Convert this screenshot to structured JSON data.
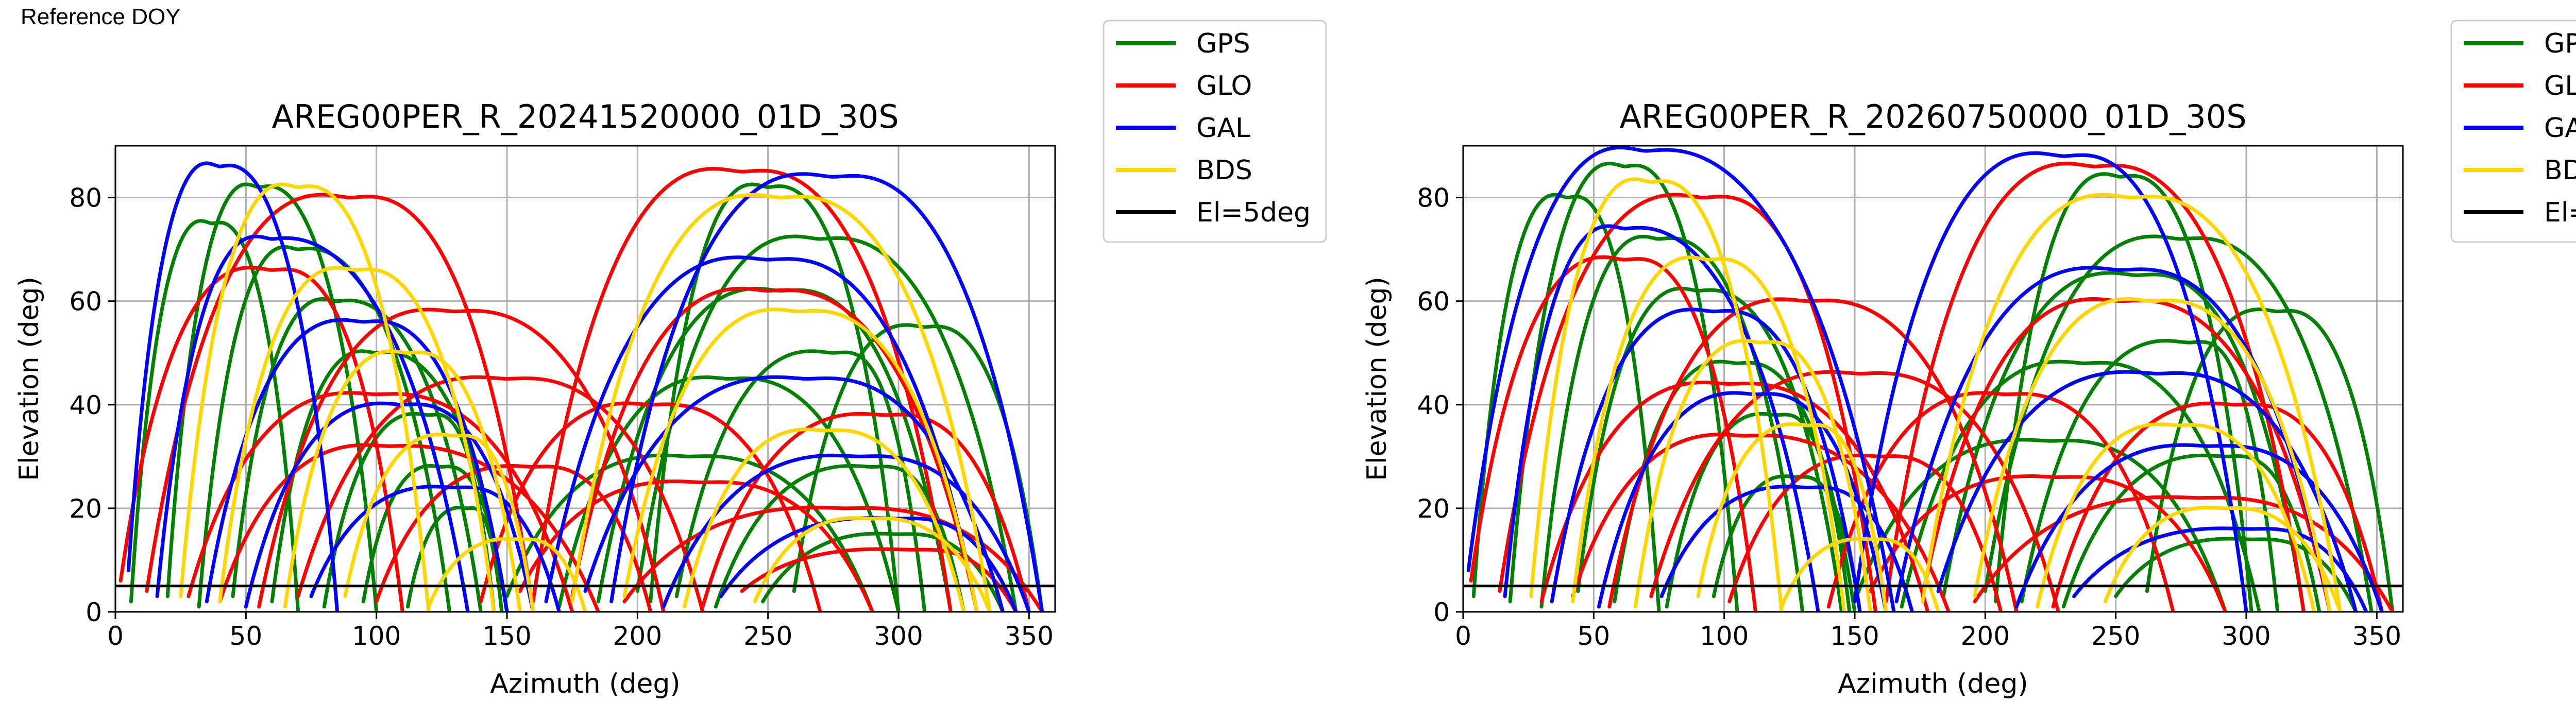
{
  "page_label": "Reference DOY",
  "chart_data": [
    {
      "type": "scatter",
      "title": "AREG00PER_R_20241520000_01D_30S",
      "xlabel": "Azimuth (deg)",
      "ylabel": "Elevation (deg)",
      "xlim": [
        0,
        360
      ],
      "ylim": [
        0,
        90
      ],
      "xticks": [
        0,
        50,
        100,
        150,
        200,
        250,
        300,
        350
      ],
      "yticks": [
        0,
        20,
        40,
        60,
        80
      ],
      "grid": true,
      "legend_position": "outside-right",
      "elevation_mask": 5,
      "series": [
        {
          "name": "GPS",
          "color": "#008000",
          "arcs": [
            [
              6,
              2,
              37,
              75,
              70
            ],
            [
              20,
              3,
              55,
              82,
              100
            ],
            [
              32,
              1,
              70,
              70,
              128
            ],
            [
              45,
              3,
              85,
              60,
              140
            ],
            [
              60,
              2,
              100,
              50,
              150
            ],
            [
              80,
              1,
              120,
              38,
              145
            ],
            [
              95,
              2,
              125,
              28,
              150
            ],
            [
              112,
              1,
              135,
              20,
              148
            ],
            [
              150,
              3,
              220,
              30,
              290
            ],
            [
              170,
              1,
              235,
              45,
              300
            ],
            [
              185,
              2,
              255,
              62,
              320
            ],
            [
              200,
              4,
              270,
              72,
              345
            ],
            [
              215,
              3,
              275,
              50,
              310
            ],
            [
              230,
              1,
              290,
              28,
              325
            ],
            [
              248,
              2,
              300,
              15,
              340
            ],
            [
              260,
              4,
              310,
              55,
              355
            ],
            [
              205,
              2,
              250,
              82,
              300
            ]
          ]
        },
        {
          "name": "GLO",
          "color": "#ff0000",
          "arcs": [
            [
              2,
              6,
              60,
              66,
              110
            ],
            [
              12,
              4,
              90,
              80,
              160
            ],
            [
              28,
              3,
              100,
              42,
              175
            ],
            [
              40,
              2,
              105,
              32,
              185
            ],
            [
              55,
              1,
              130,
              58,
              210
            ],
            [
              70,
              3,
              150,
              45,
              225
            ],
            [
              140,
              2,
              205,
              40,
              270
            ],
            [
              155,
              4,
              225,
              25,
              290
            ],
            [
              160,
              2,
              240,
              85,
              320
            ],
            [
              175,
              3,
              250,
              62,
              330
            ],
            [
              195,
              2,
              280,
              20,
              355
            ],
            [
              225,
              1,
              295,
              38,
              350
            ],
            [
              240,
              4,
              305,
              12,
              345
            ],
            [
              100,
              2,
              160,
              28,
              205
            ]
          ]
        },
        {
          "name": "GAL",
          "color": "#0000ff",
          "arcs": [
            [
              5,
              8,
              40,
              86,
              85
            ],
            [
              16,
              3,
              60,
              72,
              135
            ],
            [
              35,
              2,
              95,
              56,
              150
            ],
            [
              50,
              1,
              110,
              40,
              160
            ],
            [
              75,
              3,
              130,
              24,
              170
            ],
            [
              165,
              2,
              250,
              68,
              330
            ],
            [
              180,
              4,
              265,
              45,
              340
            ],
            [
              210,
              1,
              285,
              30,
              350
            ],
            [
              232,
              3,
              300,
              18,
              345
            ],
            [
              190,
              2,
              275,
              84,
              355
            ]
          ]
        },
        {
          "name": "BDS",
          "color": "#ffd700",
          "arcs": [
            [
              25,
              3,
              70,
              82,
              120
            ],
            [
              40,
              2,
              92,
              66,
              145
            ],
            [
              65,
              1,
              112,
              50,
              155
            ],
            [
              88,
              3,
              130,
              34,
              160
            ],
            [
              120,
              1,
              155,
              14,
              180
            ],
            [
              175,
              2,
              255,
              80,
              335
            ],
            [
              195,
              3,
              262,
              58,
              330
            ],
            [
              218,
              1,
              272,
              35,
              325
            ],
            [
              245,
              2,
              290,
              18,
              335
            ]
          ]
        }
      ]
    },
    {
      "type": "scatter",
      "title": "AREG00PER_R_20260750000_01D_30S",
      "xlabel": "Azimuth (deg)",
      "ylabel": "Elevation (deg)",
      "xlim": [
        0,
        360
      ],
      "ylim": [
        0,
        90
      ],
      "xticks": [
        0,
        50,
        100,
        150,
        200,
        250,
        300,
        350
      ],
      "yticks": [
        0,
        20,
        40,
        60,
        80
      ],
      "grid": true,
      "legend_position": "outside-right",
      "elevation_mask": 5,
      "series": [
        {
          "name": "GPS",
          "color": "#008000",
          "arcs": [
            [
              4,
              3,
              40,
              80,
              75
            ],
            [
              18,
              2,
              62,
              86,
              105
            ],
            [
              30,
              1,
              75,
              72,
              130
            ],
            [
              44,
              4,
              90,
              62,
              145
            ],
            [
              58,
              2,
              105,
              48,
              150
            ],
            [
              78,
              1,
              120,
              38,
              148
            ],
            [
              96,
              3,
              128,
              26,
              152
            ],
            [
              150,
              2,
              225,
              33,
              292
            ],
            [
              168,
              1,
              238,
              48,
              305
            ],
            [
              184,
              3,
              258,
              65,
              322
            ],
            [
              200,
              4,
              275,
              72,
              348
            ],
            [
              214,
              2,
              278,
              52,
              312
            ],
            [
              230,
              1,
              292,
              30,
              328
            ],
            [
              250,
              3,
              302,
              14,
              342
            ],
            [
              262,
              4,
              312,
              58,
              356
            ],
            [
              204,
              2,
              252,
              84,
              302
            ]
          ]
        },
        {
          "name": "GLO",
          "color": "#ff0000",
          "arcs": [
            [
              3,
              6,
              62,
              68,
              112
            ],
            [
              14,
              4,
              92,
              80,
              158
            ],
            [
              30,
              2,
              102,
              44,
              178
            ],
            [
              42,
              3,
              108,
              34,
              186
            ],
            [
              56,
              1,
              132,
              60,
              212
            ],
            [
              72,
              3,
              152,
              46,
              228
            ],
            [
              140,
              1,
              208,
              42,
              272
            ],
            [
              156,
              4,
              228,
              26,
              292
            ],
            [
              162,
              2,
              242,
              86,
              322
            ],
            [
              176,
              3,
              252,
              60,
              332
            ],
            [
              196,
              2,
              282,
              22,
              356
            ],
            [
              226,
              1,
              296,
              40,
              352
            ],
            [
              102,
              2,
              160,
              30,
              206
            ]
          ]
        },
        {
          "name": "GAL",
          "color": "#0000ff",
          "arcs": [
            [
              2,
              8,
              70,
              89,
              165
            ],
            [
              16,
              3,
              62,
              74,
              136
            ],
            [
              34,
              2,
              96,
              58,
              152
            ],
            [
              52,
              1,
              112,
              42,
              162
            ],
            [
              76,
              3,
              132,
              24,
              172
            ],
            [
              150,
              2,
              230,
              88,
              300
            ],
            [
              166,
              2,
              252,
              66,
              332
            ],
            [
              182,
              4,
              266,
              46,
              342
            ],
            [
              212,
              1,
              286,
              32,
              352
            ],
            [
              234,
              3,
              302,
              16,
              346
            ]
          ]
        },
        {
          "name": "BDS",
          "color": "#ffd700",
          "arcs": [
            [
              26,
              3,
              72,
              83,
              122
            ],
            [
              42,
              2,
              94,
              68,
              146
            ],
            [
              66,
              1,
              114,
              52,
              156
            ],
            [
              90,
              3,
              132,
              36,
              162
            ],
            [
              122,
              1,
              157,
              14,
              182
            ],
            [
              176,
              2,
              256,
              80,
              336
            ],
            [
              196,
              3,
              264,
              60,
              332
            ],
            [
              220,
              1,
              274,
              36,
              326
            ],
            [
              246,
              2,
              292,
              20,
              336
            ]
          ]
        }
      ]
    }
  ]
}
